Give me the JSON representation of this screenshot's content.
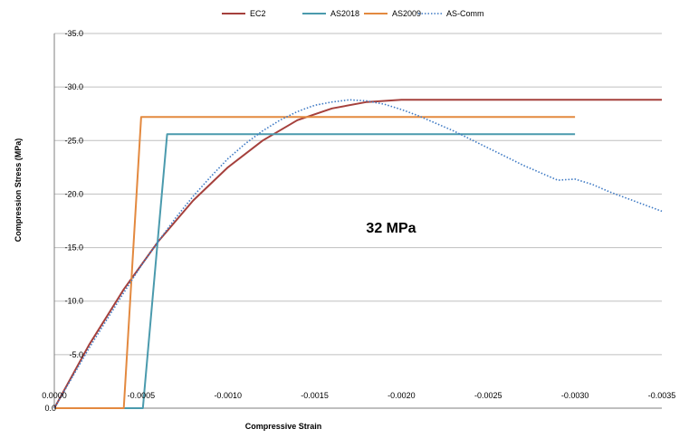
{
  "chart_data": {
    "type": "line",
    "title": "",
    "xlabel": "Compressive Strain",
    "ylabel": "Compression Stress (MPa)",
    "xlim": [
      0,
      -0.0035
    ],
    "ylim": [
      0,
      -35
    ],
    "x_ticks": [
      0,
      -0.0005,
      -0.001,
      -0.0015,
      -0.002,
      -0.0025,
      -0.003,
      -0.0035
    ],
    "x_tick_labels": [
      "0.0000",
      "-0.0005",
      "-0.0010",
      "-0.0015",
      "-0.0020",
      "-0.0025",
      "-0.0030",
      "-0.0035"
    ],
    "y_ticks": [
      0,
      -5,
      -10,
      -15,
      -20,
      -25,
      -30,
      -35
    ],
    "y_tick_labels": [
      "0.0",
      "-5.0",
      "-10.0",
      "-15.0",
      "-20.0",
      "-25.0",
      "-30.0",
      "-35.0"
    ],
    "grid": true,
    "legend_position": "top",
    "annotation": "32 MPa",
    "series": [
      {
        "name": "EC2",
        "color": "#a5403c",
        "style": "solid",
        "x": [
          0,
          -0.0002,
          -0.0004,
          -0.0006,
          -0.0008,
          -0.001,
          -0.0012,
          -0.0014,
          -0.0016,
          -0.0018,
          -0.002,
          -0.0021,
          -0.0022,
          -0.0024,
          -0.0026,
          -0.0028,
          -0.003,
          -0.0032,
          -0.0035
        ],
        "y": [
          0,
          -5.9,
          -11.1,
          -15.6,
          -19.4,
          -22.5,
          -25.0,
          -26.9,
          -28.0,
          -28.6,
          -28.8,
          -28.8,
          -28.8,
          -28.8,
          -28.8,
          -28.8,
          -28.8,
          -28.8,
          -28.8
        ]
      },
      {
        "name": "AS2018",
        "color": "#4a9aad",
        "style": "solid",
        "x": [
          0,
          -0.00051,
          -0.00065,
          -0.0008,
          -0.001,
          -0.0015,
          -0.002,
          -0.0025,
          -0.003
        ],
        "y": [
          0,
          0,
          -25.6,
          -25.6,
          -25.6,
          -25.6,
          -25.6,
          -25.6,
          -25.6
        ]
      },
      {
        "name": "AS2009",
        "color": "#e3893f",
        "style": "solid",
        "x": [
          0,
          -0.0004,
          -0.0005,
          -0.0008,
          -0.001,
          -0.0015,
          -0.002,
          -0.0025,
          -0.003
        ],
        "y": [
          0,
          0,
          -27.2,
          -27.2,
          -27.2,
          -27.2,
          -27.2,
          -27.2,
          -27.2
        ]
      },
      {
        "name": "AS-Comm",
        "color": "#3d79c4",
        "style": "dotted",
        "x": [
          0,
          -0.0001,
          -0.0002,
          -0.0003,
          -0.0004,
          -0.0005,
          -0.0006,
          -0.0007,
          -0.0008,
          -0.0009,
          -0.001,
          -0.0011,
          -0.0012,
          -0.0013,
          -0.0014,
          -0.0015,
          -0.0016,
          -0.0017,
          -0.0018,
          -0.0019,
          -0.002,
          -0.0021,
          -0.0022,
          -0.0023,
          -0.0024,
          -0.0025,
          -0.0026,
          -0.0027,
          -0.0028,
          -0.0029,
          -0.003,
          -0.0031,
          -0.0032,
          -0.0033,
          -0.0034,
          -0.0035
        ],
        "y": [
          0,
          -2.8,
          -5.6,
          -8.2,
          -10.8,
          -13.3,
          -15.6,
          -17.8,
          -19.8,
          -21.6,
          -23.3,
          -24.7,
          -25.9,
          -26.9,
          -27.7,
          -28.3,
          -28.6,
          -28.8,
          -28.7,
          -28.4,
          -27.9,
          -27.3,
          -26.6,
          -25.9,
          -25.1,
          -24.3,
          -23.5,
          -22.7,
          -22.0,
          -21.3,
          -21.4,
          -20.9,
          -20.2,
          -19.6,
          -19.0,
          -18.4
        ]
      }
    ]
  }
}
